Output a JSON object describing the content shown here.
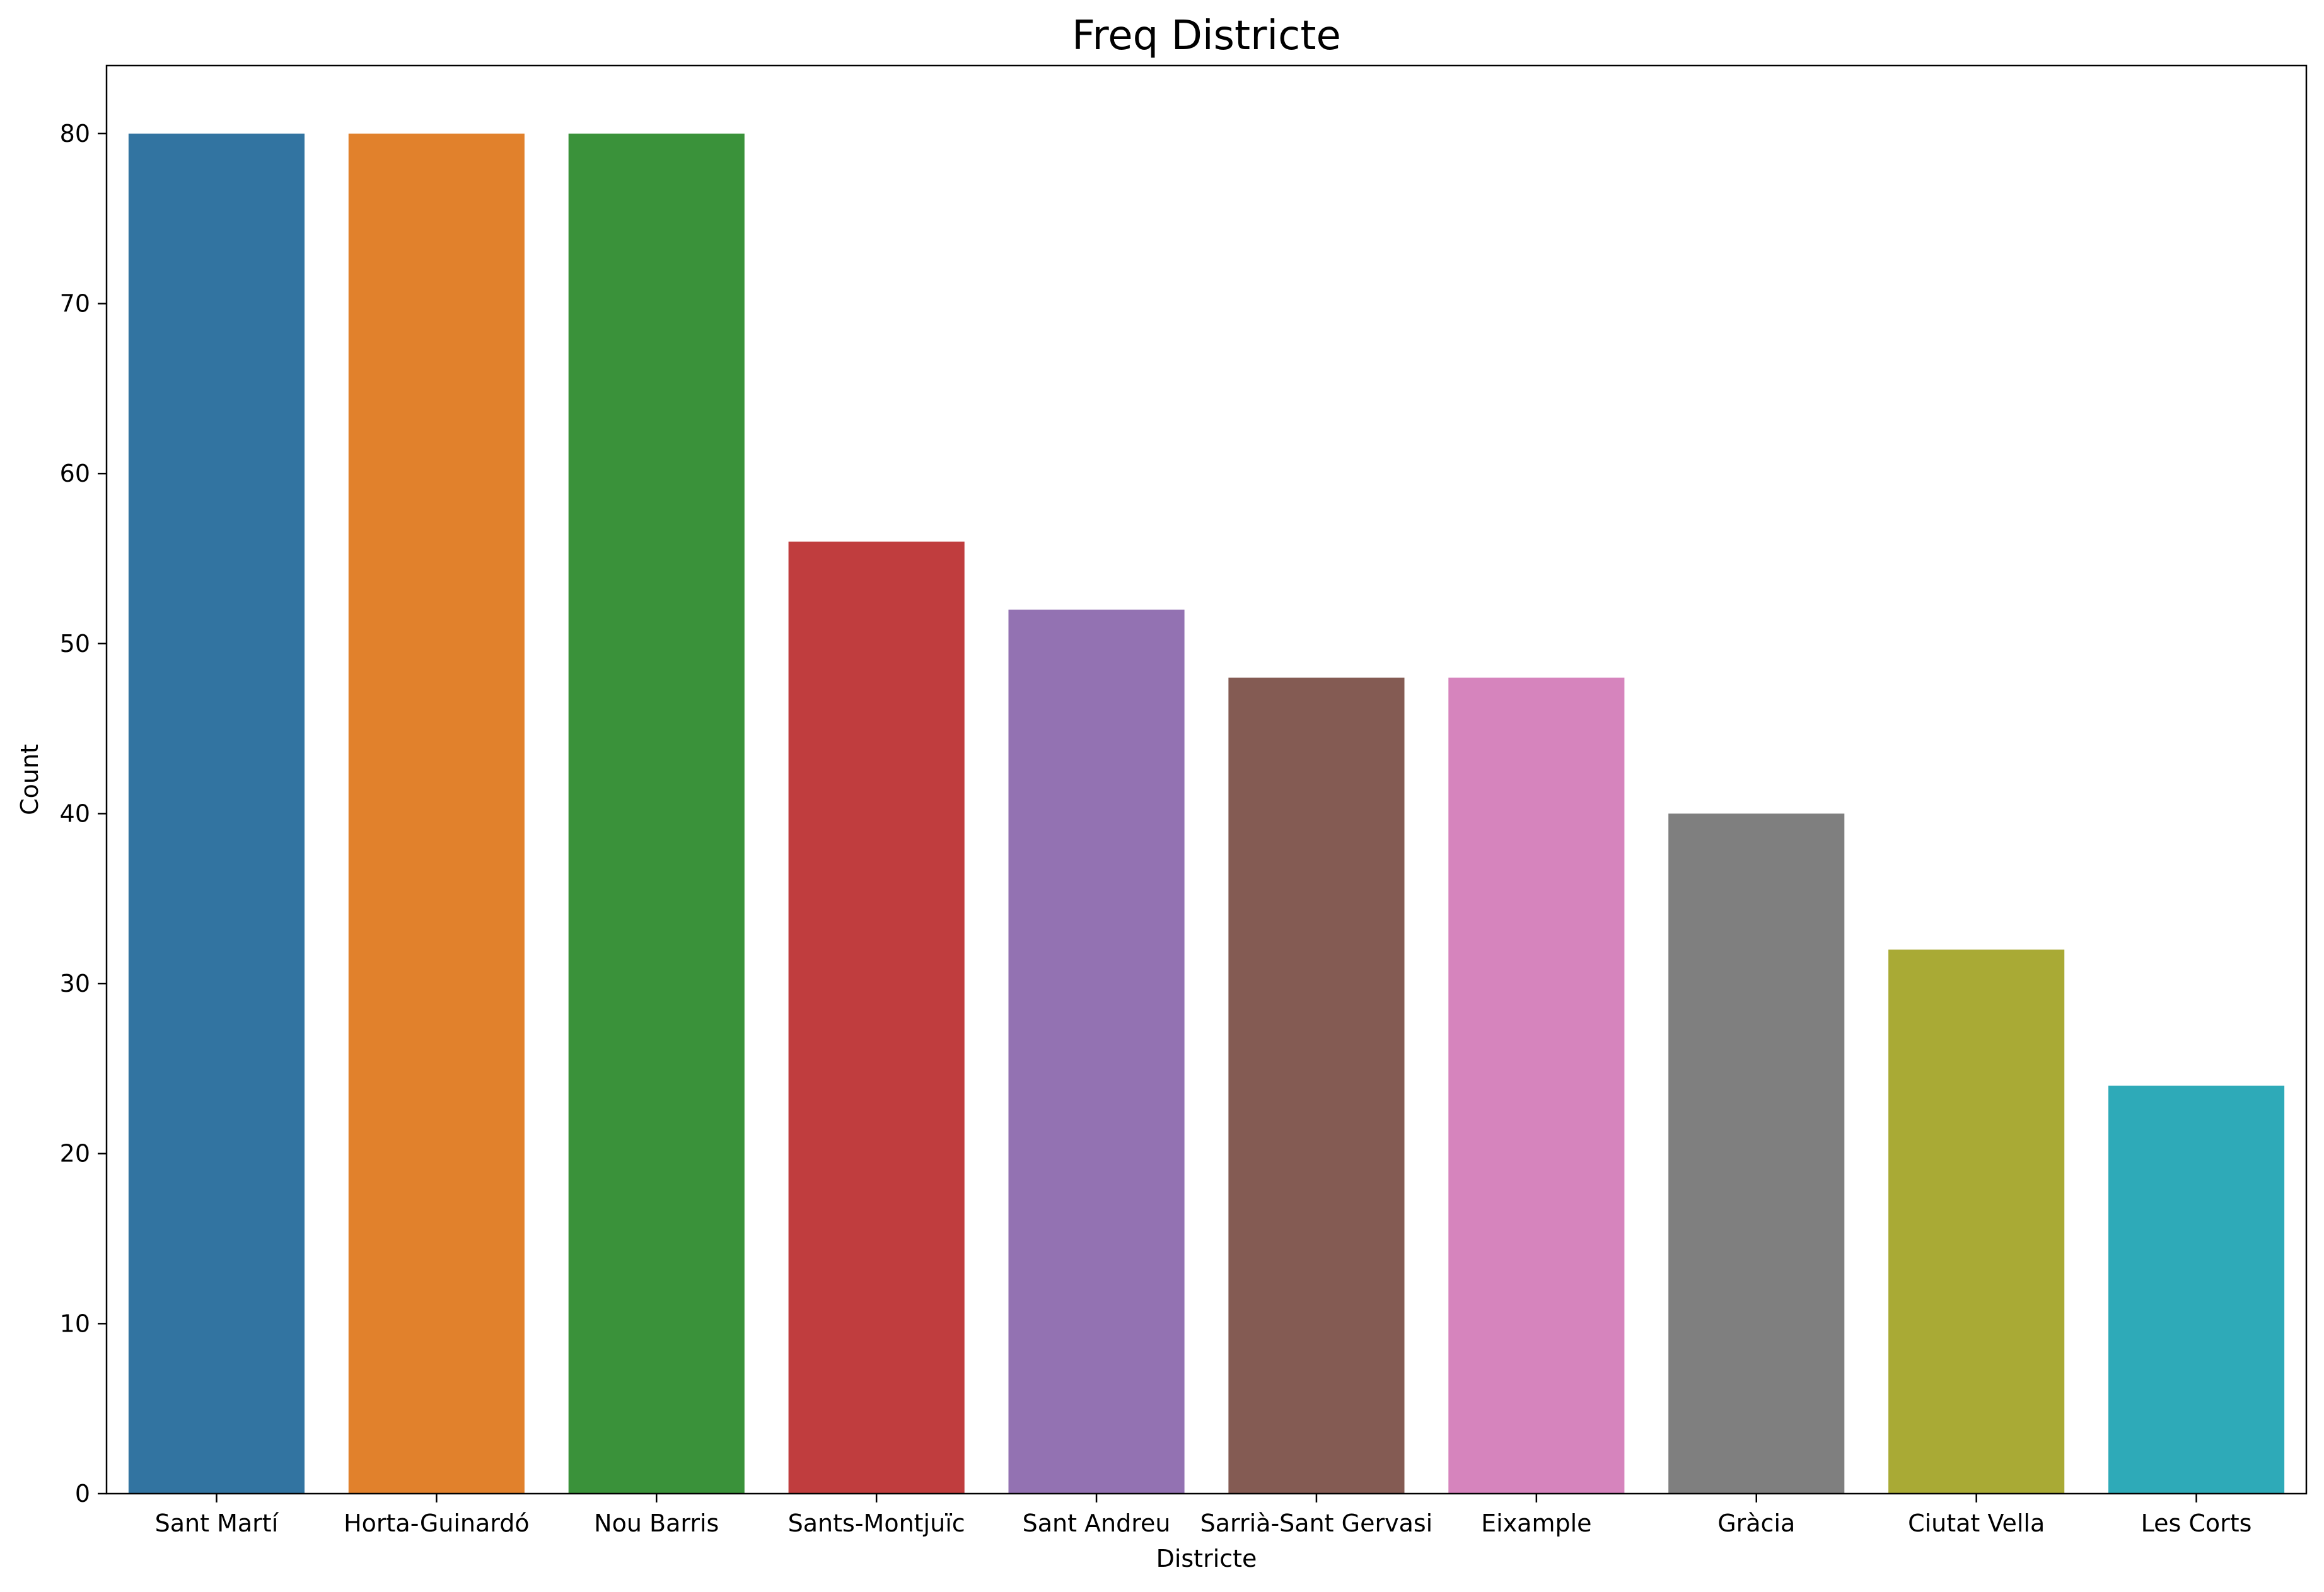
{
  "chart_data": {
    "type": "bar",
    "title": "Freq Districte",
    "xlabel": "Districte",
    "ylabel": "Count",
    "ylim": [
      0,
      84
    ],
    "yticks": [
      0,
      10,
      20,
      30,
      40,
      50,
      60,
      70,
      80
    ],
    "categories": [
      "Sant Martí",
      "Horta-Guinardó",
      "Nou Barris",
      "Sants-Montjuïc",
      "Sant Andreu",
      "Sarrià-Sant Gervasi",
      "Eixample",
      "Gràcia",
      "Ciutat Vella",
      "Les Corts"
    ],
    "values": [
      80,
      80,
      80,
      56,
      52,
      48,
      48,
      40,
      32,
      24
    ],
    "colors": [
      "#3274a1",
      "#e1812c",
      "#3a923a",
      "#c03d3e",
      "#9372b2",
      "#845b53",
      "#d684bd",
      "#7f7f7f",
      "#a9aa35",
      "#2eaab8"
    ],
    "grid": false,
    "legend": "none"
  }
}
